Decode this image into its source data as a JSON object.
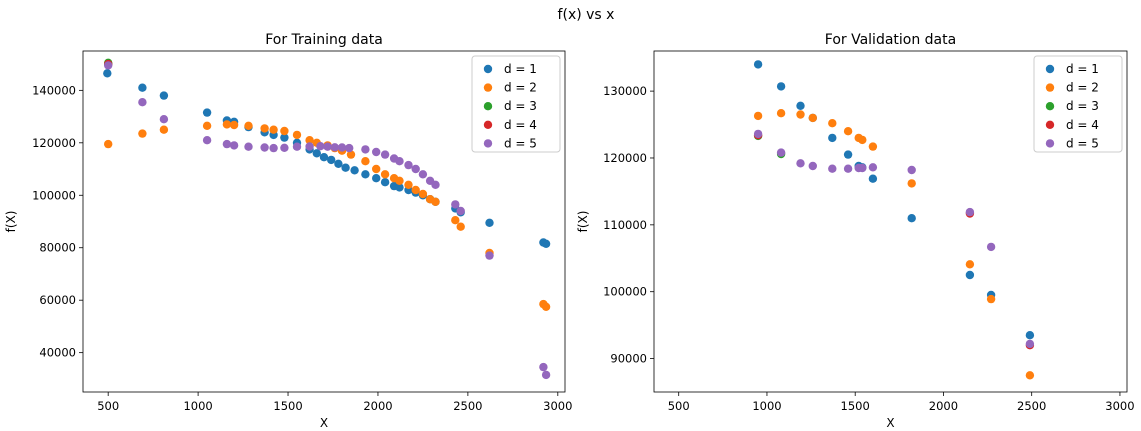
{
  "figure": {
    "suptitle": "f(x) vs x"
  },
  "colors": {
    "d1": "#1f77b4",
    "d2": "#ff7f0e",
    "d3": "#2ca02c",
    "d4": "#d62728",
    "d5": "#9467bd"
  },
  "chart_data": [
    {
      "type": "scatter",
      "title": "For Training data",
      "xlabel": "X",
      "ylabel": "f(X)",
      "xlim": [
        360,
        3040
      ],
      "ylim": [
        25000,
        155000
      ],
      "xticks": [
        500,
        1000,
        1500,
        2000,
        2500,
        3000
      ],
      "yticks": [
        40000,
        60000,
        80000,
        100000,
        120000,
        140000
      ],
      "grid": false,
      "legend_position": "top-right",
      "series": [
        {
          "name": "d = 1",
          "color": "#1f77b4",
          "points": [
            [
              495,
              146500
            ],
            [
              500,
              150000
            ],
            [
              690,
              141000
            ],
            [
              810,
              138000
            ],
            [
              1050,
              131500
            ],
            [
              1160,
              128500
            ],
            [
              1200,
              128000
            ],
            [
              1280,
              126000
            ],
            [
              1370,
              124000
            ],
            [
              1420,
              123000
            ],
            [
              1480,
              122000
            ],
            [
              1550,
              120000
            ],
            [
              1620,
              117500
            ],
            [
              1660,
              116000
            ],
            [
              1700,
              114500
            ],
            [
              1740,
              113500
            ],
            [
              1780,
              112000
            ],
            [
              1820,
              110500
            ],
            [
              1870,
              109500
            ],
            [
              1930,
              108000
            ],
            [
              1990,
              106500
            ],
            [
              2040,
              105000
            ],
            [
              2090,
              103500
            ],
            [
              2120,
              103000
            ],
            [
              2170,
              102000
            ],
            [
              2210,
              101000
            ],
            [
              2250,
              100000
            ],
            [
              2290,
              98500
            ],
            [
              2320,
              97500
            ],
            [
              2430,
              95000
            ],
            [
              2460,
              93500
            ],
            [
              2620,
              89500
            ],
            [
              2920,
              82000
            ],
            [
              2935,
              81500
            ]
          ]
        },
        {
          "name": "d = 2",
          "color": "#ff7f0e",
          "points": [
            [
              500,
              119500
            ],
            [
              690,
              123500
            ],
            [
              810,
              125000
            ],
            [
              1050,
              126500
            ],
            [
              1160,
              127000
            ],
            [
              1200,
              126800
            ],
            [
              1280,
              126500
            ],
            [
              1370,
              125500
            ],
            [
              1420,
              125000
            ],
            [
              1480,
              124500
            ],
            [
              1550,
              123000
            ],
            [
              1620,
              121000
            ],
            [
              1660,
              120000
            ],
            [
              1720,
              119000
            ],
            [
              1760,
              118000
            ],
            [
              1800,
              117000
            ],
            [
              1850,
              115500
            ],
            [
              1930,
              113000
            ],
            [
              1990,
              110000
            ],
            [
              2040,
              108000
            ],
            [
              2090,
              106500
            ],
            [
              2120,
              105500
            ],
            [
              2170,
              104000
            ],
            [
              2210,
              102000
            ],
            [
              2250,
              100500
            ],
            [
              2290,
              98500
            ],
            [
              2320,
              97500
            ],
            [
              2430,
              90500
            ],
            [
              2460,
              88000
            ],
            [
              2620,
              78000
            ],
            [
              2920,
              58500
            ],
            [
              2935,
              57500
            ]
          ]
        },
        {
          "name": "d = 3",
          "color": "#2ca02c",
          "points": [
            [
              500,
              150500
            ]
          ]
        },
        {
          "name": "d = 4",
          "color": "#d62728",
          "points": [
            [
              500,
              150000
            ]
          ]
        },
        {
          "name": "d = 5",
          "color": "#9467bd",
          "points": [
            [
              500,
              149500
            ],
            [
              690,
              135500
            ],
            [
              810,
              129000
            ],
            [
              1050,
              121000
            ],
            [
              1160,
              119500
            ],
            [
              1200,
              119000
            ],
            [
              1280,
              118500
            ],
            [
              1370,
              118200
            ],
            [
              1420,
              118000
            ],
            [
              1480,
              118100
            ],
            [
              1550,
              118500
            ],
            [
              1620,
              118600
            ],
            [
              1680,
              118700
            ],
            [
              1720,
              118500
            ],
            [
              1760,
              118300
            ],
            [
              1800,
              118200
            ],
            [
              1840,
              118000
            ],
            [
              1930,
              117500
            ],
            [
              1990,
              116500
            ],
            [
              2040,
              115500
            ],
            [
              2090,
              114000
            ],
            [
              2120,
              113000
            ],
            [
              2170,
              111500
            ],
            [
              2210,
              110000
            ],
            [
              2250,
              108000
            ],
            [
              2290,
              105500
            ],
            [
              2320,
              104000
            ],
            [
              2430,
              96500
            ],
            [
              2460,
              94000
            ],
            [
              2620,
              77000
            ],
            [
              2920,
              34500
            ],
            [
              2935,
              31500
            ]
          ]
        }
      ]
    },
    {
      "type": "scatter",
      "title": "For Validation data",
      "xlabel": "X",
      "ylabel": "f(X)",
      "xlim": [
        360,
        3040
      ],
      "ylim": [
        85000,
        136000
      ],
      "xticks": [
        500,
        1000,
        1500,
        2000,
        2500,
        3000
      ],
      "yticks": [
        90000,
        100000,
        110000,
        120000,
        130000
      ],
      "grid": false,
      "legend_position": "top-right",
      "series": [
        {
          "name": "d = 1",
          "color": "#1f77b4",
          "points": [
            [
              950,
              134000
            ],
            [
              1080,
              130700
            ],
            [
              1190,
              127800
            ],
            [
              1260,
              126000
            ],
            [
              1370,
              123000
            ],
            [
              1460,
              120500
            ],
            [
              1520,
              118800
            ],
            [
              1540,
              118600
            ],
            [
              1600,
              116900
            ],
            [
              1820,
              111000
            ],
            [
              2150,
              102500
            ],
            [
              2270,
              99500
            ],
            [
              2490,
              93500
            ]
          ]
        },
        {
          "name": "d = 2",
          "color": "#ff7f0e",
          "points": [
            [
              950,
              126300
            ],
            [
              1080,
              126700
            ],
            [
              1190,
              126500
            ],
            [
              1260,
              126000
            ],
            [
              1370,
              125200
            ],
            [
              1460,
              124000
            ],
            [
              1520,
              123000
            ],
            [
              1540,
              122700
            ],
            [
              1600,
              121700
            ],
            [
              1820,
              116200
            ],
            [
              2150,
              104100
            ],
            [
              2270,
              98900
            ],
            [
              2490,
              87500
            ]
          ]
        },
        {
          "name": "d = 3",
          "color": "#2ca02c",
          "points": [
            [
              950,
              123300
            ],
            [
              1080,
              120600
            ]
          ]
        },
        {
          "name": "d = 4",
          "color": "#d62728",
          "points": [
            [
              950,
              123400
            ],
            [
              2150,
              111700
            ],
            [
              2490,
              92000
            ]
          ]
        },
        {
          "name": "d = 5",
          "color": "#9467bd",
          "points": [
            [
              950,
              123600
            ],
            [
              1080,
              120800
            ],
            [
              1190,
              119200
            ],
            [
              1260,
              118800
            ],
            [
              1370,
              118400
            ],
            [
              1460,
              118400
            ],
            [
              1520,
              118500
            ],
            [
              1540,
              118500
            ],
            [
              1600,
              118600
            ],
            [
              1820,
              118200
            ],
            [
              2150,
              111900
            ],
            [
              2270,
              106700
            ],
            [
              2490,
              92200
            ]
          ]
        }
      ]
    }
  ]
}
